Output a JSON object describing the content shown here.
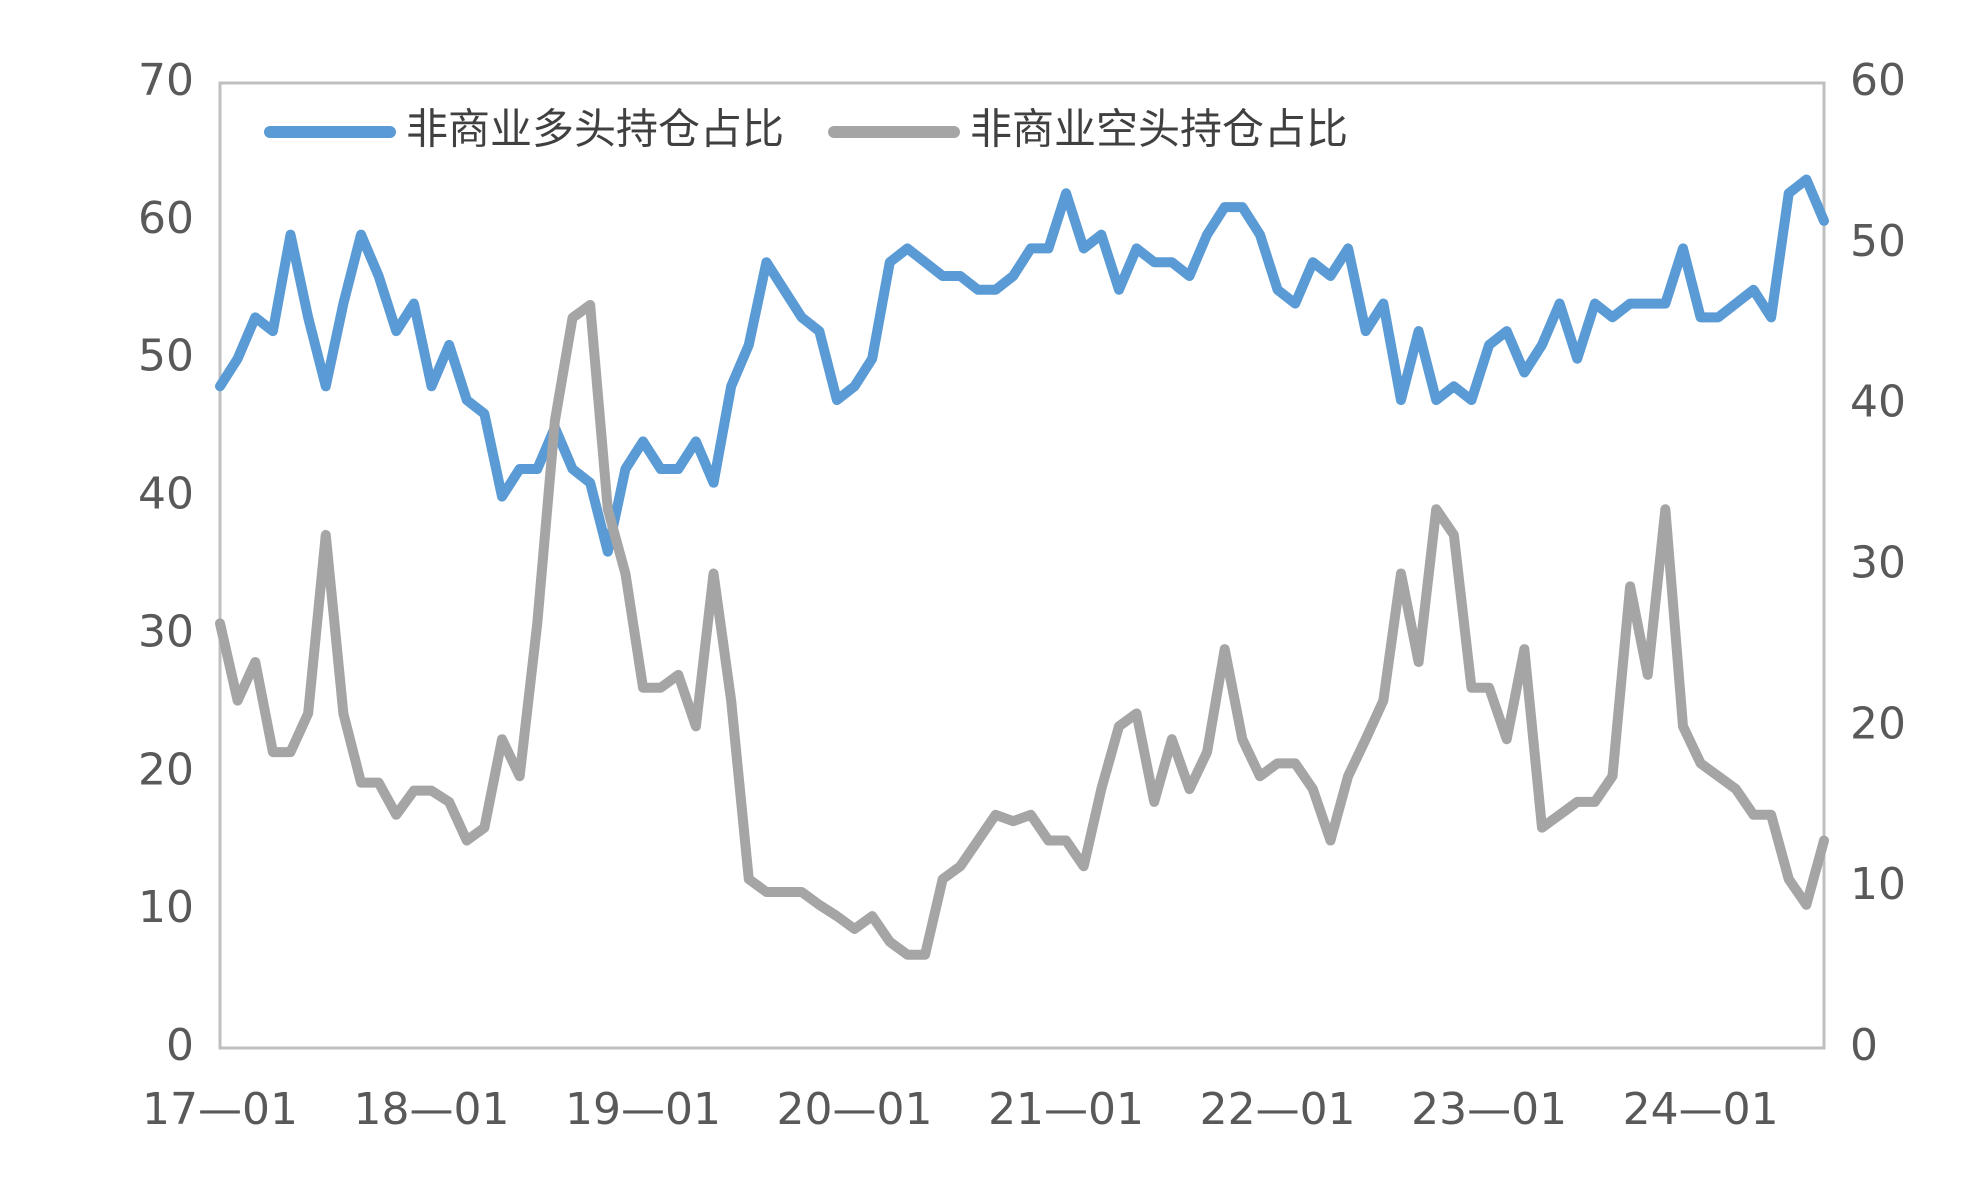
{
  "chart_data": {
    "type": "line",
    "categories": [
      "17—01",
      null,
      null,
      null,
      null,
      null,
      null,
      null,
      null,
      null,
      null,
      null,
      "18—01",
      null,
      null,
      null,
      null,
      null,
      null,
      null,
      null,
      null,
      null,
      null,
      "19—01",
      null,
      null,
      null,
      null,
      null,
      null,
      null,
      null,
      null,
      null,
      null,
      "20—01",
      null,
      null,
      null,
      null,
      null,
      null,
      null,
      null,
      null,
      null,
      null,
      "21—01",
      null,
      null,
      null,
      null,
      null,
      null,
      null,
      null,
      null,
      null,
      null,
      "22—01",
      null,
      null,
      null,
      null,
      null,
      null,
      null,
      null,
      null,
      null,
      null,
      "23—01",
      null,
      null,
      null,
      null,
      null,
      null,
      null,
      null,
      null,
      null,
      null,
      "24—01",
      null,
      null,
      null,
      null,
      null,
      null,
      null
    ],
    "series": [
      {
        "name": "非商业多头持仓占比",
        "color": "#5b9bd5",
        "values": [
          48,
          50,
          53,
          52,
          59,
          53,
          48,
          54,
          59,
          56,
          52,
          54,
          48,
          51,
          47,
          46,
          40,
          42,
          42,
          45,
          42,
          41,
          36,
          42,
          44,
          42,
          42,
          44,
          41,
          48,
          51,
          57,
          55,
          53,
          52,
          47,
          48,
          50,
          57,
          58,
          57,
          56,
          56,
          55,
          55,
          56,
          58,
          58,
          62,
          58,
          59,
          55,
          58,
          57,
          57,
          56,
          59,
          61,
          61,
          59,
          55,
          54,
          57,
          56,
          58,
          52,
          54,
          47,
          52,
          47,
          48,
          47,
          51,
          52,
          49,
          51,
          54,
          50,
          54,
          53,
          54,
          54,
          54,
          58,
          53,
          53,
          54,
          55,
          53,
          62,
          63,
          60
        ]
      },
      {
        "name": "非商业空头持仓占比",
        "color": "#a5a5a5",
        "axis": "y2",
        "values": [
          26.4,
          21.6,
          24,
          18.4,
          18.4,
          20.8,
          31.9,
          20.8,
          16.5,
          16.5,
          14.5,
          16,
          16,
          15.3,
          12.9,
          13.7,
          19.2,
          16.9,
          26.4,
          39,
          45.4,
          46.2,
          33.5,
          29.5,
          22.4,
          22.4,
          23.2,
          20,
          29.5,
          21.6,
          10.5,
          9.7,
          9.7,
          9.7,
          8.9,
          8.2,
          7.4,
          8.2,
          6.6,
          5.8,
          5.8,
          10.5,
          11.3,
          12.9,
          14.5,
          14.1,
          14.5,
          12.9,
          12.9,
          11.3,
          16.1,
          20,
          20.8,
          15.3,
          19.2,
          16.1,
          18.4,
          24.8,
          19.2,
          16.9,
          17.7,
          17.7,
          16.1,
          12.9,
          16.9,
          19.2,
          21.6,
          29.5,
          24,
          33.5,
          31.9,
          22.4,
          22.4,
          19.2,
          24.8,
          13.7,
          14.5,
          15.3,
          15.3,
          16.9,
          28.7,
          23.2,
          33.5,
          20,
          17.7,
          16.9,
          16.1,
          14.5,
          14.5,
          10.5,
          8.9,
          12.9
        ]
      }
    ],
    "ylim": [
      0,
      70
    ],
    "yticks": [
      0,
      10,
      20,
      30,
      40,
      50,
      60,
      70
    ],
    "y2lim": [
      0,
      60
    ],
    "y2ticks": [
      0,
      10,
      20,
      30,
      40,
      50,
      60
    ],
    "legend": "top-left",
    "grid": false
  }
}
